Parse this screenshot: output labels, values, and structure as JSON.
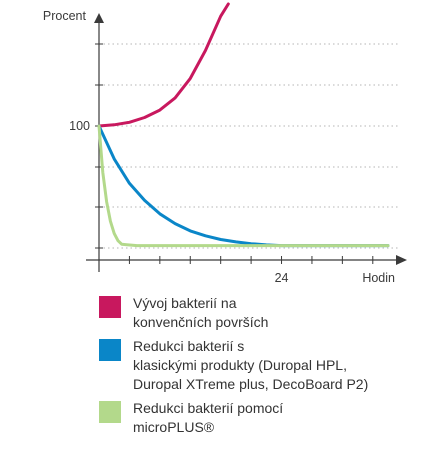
{
  "chart_data": {
    "type": "line",
    "ylabel": "Procent",
    "xlabel": "Hodin",
    "y_ticks": [
      {
        "value": 100,
        "label": "100"
      }
    ],
    "x_ticks": [
      {
        "value": 24,
        "label": "24"
      }
    ],
    "xlim": [
      0,
      38
    ],
    "ylim": [
      0,
      200
    ],
    "grid": "horizontal-dotted",
    "series": [
      {
        "color": "#c8185e",
        "x": [
          0,
          2,
          4,
          6,
          8,
          10,
          12,
          14,
          16,
          17
        ],
        "y": [
          100,
          101,
          103,
          107,
          113,
          123,
          139,
          162,
          190,
          200
        ]
      },
      {
        "color": "#0a86c8",
        "x": [
          0,
          2,
          4,
          6,
          8,
          10,
          12,
          14,
          16,
          18,
          20,
          22,
          24,
          30,
          38
        ],
        "y": [
          100,
          73,
          53,
          39,
          28,
          20,
          14,
          10,
          7,
          5,
          3.5,
          2.5,
          2,
          2,
          2
        ]
      },
      {
        "color": "#b3d98b",
        "x": [
          0,
          0.5,
          1,
          1.5,
          2,
          2.5,
          3,
          5,
          10,
          20,
          38
        ],
        "y": [
          100,
          62,
          38,
          22,
          12,
          6,
          3,
          2,
          2,
          2,
          2
        ]
      }
    ]
  },
  "legend": [
    {
      "color": "#c8185e",
      "lines": [
        "Vývoj bakterií na",
        "konvenčních površích"
      ]
    },
    {
      "color": "#0a86c8",
      "lines": [
        "Redukci bakterií s",
        "klasickými produkty (Duropal HPL,",
        "Duropal XTreme plus, DecoBoard P2)"
      ]
    },
    {
      "color": "#b3d98b",
      "lines": [
        "Redukci bakterií pomocí",
        "microPLUS®"
      ]
    }
  ]
}
